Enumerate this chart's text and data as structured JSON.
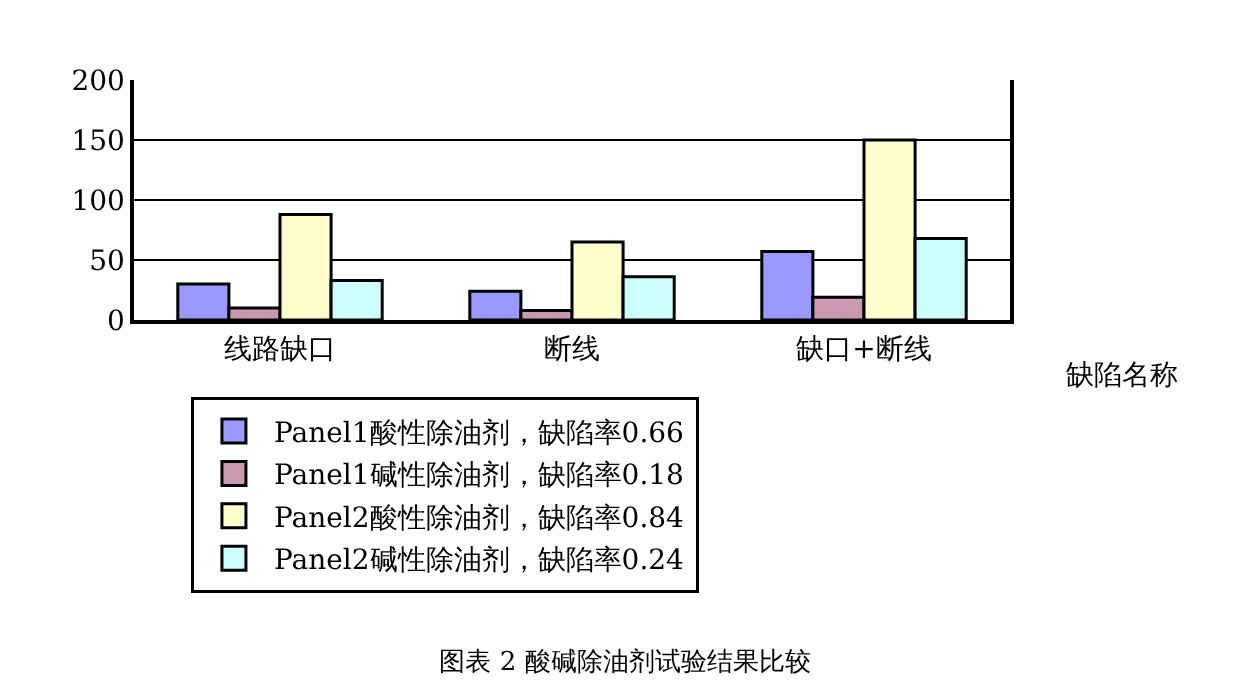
{
  "chart_data": {
    "type": "bar",
    "title": "图表 2 酸碱除油剂试验结果比较",
    "xlabel": "缺陷名称",
    "categories": [
      "线路缺口",
      "断线",
      "缺口+断线"
    ],
    "series": [
      {
        "name": "Panel1酸性除油剂，缺陷率0.66",
        "color": "#9999ff",
        "values": [
          30,
          24,
          57
        ]
      },
      {
        "name": "Panel1碱性除油剂，缺陷率0.18",
        "color": "#cc99b3",
        "values": [
          10,
          8,
          19
        ]
      },
      {
        "name": "Panel2酸性除油剂，缺陷率0.84",
        "color": "#ffffcc",
        "values": [
          88,
          65,
          150
        ]
      },
      {
        "name": "Panel2碱性除油剂，缺陷率0.24",
        "color": "#ccffff",
        "values": [
          33,
          36,
          68
        ]
      }
    ],
    "ylim": [
      0,
      200
    ],
    "yticks": [
      0,
      50,
      100,
      150,
      200
    ],
    "grid": "y",
    "legend": "bottom"
  }
}
